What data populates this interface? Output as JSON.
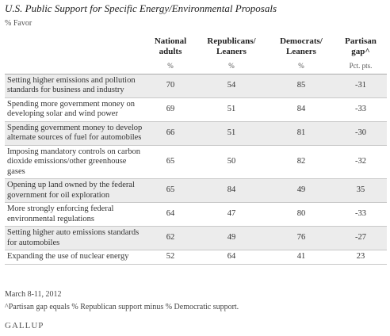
{
  "header": {
    "title": "U.S. Public Support for Specific Energy/Environmental Proposals",
    "subtitle": "% Favor"
  },
  "table": {
    "columns": [
      "National adults",
      "Republicans/ Leaners",
      "Democrats/ Leaners",
      "Partisan gap^"
    ],
    "units": [
      "%",
      "%",
      "%",
      "Pct. pts."
    ],
    "rows": [
      [
        "Setting higher emissions and pollution standards for business and industry",
        70,
        54,
        85,
        -31
      ],
      [
        "Spending more government money on developing solar and wind power",
        69,
        51,
        84,
        -33
      ],
      [
        "Spending government money to develop alternate sources of fuel for automobiles",
        66,
        51,
        81,
        -30
      ],
      [
        "Imposing mandatory controls on carbon dioxide emissions/other greenhouse gases",
        65,
        50,
        82,
        -32
      ],
      [
        "Opening up land owned by the federal government for oil exploration",
        65,
        84,
        49,
        35
      ],
      [
        "More strongly enforcing federal environmental regulations",
        64,
        47,
        80,
        -33
      ],
      [
        "Setting higher auto emissions standards for automobiles",
        62,
        49,
        76,
        -27
      ],
      [
        "Expanding the use of nuclear energy",
        52,
        64,
        41,
        23
      ]
    ]
  },
  "footer": {
    "date": "March 8-11, 2012",
    "note": "^Partisan gap equals % Republican support minus % Democratic support.",
    "source": "GALLUP"
  }
}
